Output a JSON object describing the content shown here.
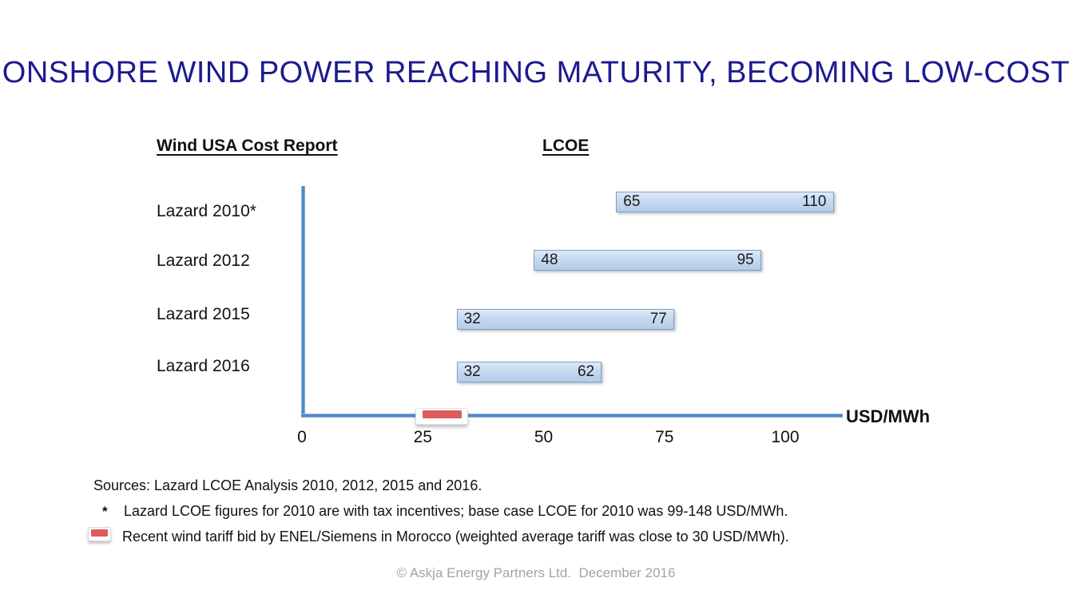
{
  "slide": {
    "title": "ONSHORE WIND POWER REACHING MATURITY, BECOMING LOW-COST",
    "left_column_header": "Wind USA Cost Report",
    "right_column_header": "LCOE"
  },
  "colors": {
    "title_navy": "#1b1b8e",
    "bar_fill": "#bfd5ee",
    "bar_border": "#7ba2cf",
    "axis_blue": "#4d86c6",
    "marker_red": "#dd5c5c",
    "copyright_gray": "#a3a3a3"
  },
  "chart_data": {
    "type": "bar",
    "orientation": "horizontal_range_bars",
    "title": "LCOE",
    "categories": [
      "Lazard 2010*",
      "Lazard 2012",
      "Lazard 2015",
      "Lazard 2016"
    ],
    "series": [
      {
        "name": "Lazard LCOE range",
        "ranges": [
          [
            65,
            110
          ],
          [
            48,
            95
          ],
          [
            32,
            77
          ],
          [
            32,
            62
          ]
        ]
      }
    ],
    "x_ticks": [
      "0",
      "25",
      "50",
      "75",
      "100"
    ],
    "x_tick_values": [
      0,
      25,
      50,
      75,
      100
    ],
    "xlim": [
      0,
      112
    ],
    "xlabel": "USD/MWh",
    "grid": false,
    "legend_position": "none",
    "marker": {
      "label": "Recent wind tariff bid by ENEL/Siemens in Morocco",
      "range": [
        25,
        33
      ],
      "note": "weighted average tariff was close to 30 USD/MWh",
      "color": "#dd5c5c"
    }
  },
  "footer": {
    "sources_line": "Sources: Lazard LCOE Analysis 2010, 2012, 2015 and 2016.",
    "footnote_star_symbol": "*",
    "footnote_star_text": "Lazard LCOE figures for 2010 are with tax incentives; base case LCOE for 2010 was 99-148 USD/MWh.",
    "footnote_marker_text": "Recent wind tariff bid by ENEL/Siemens in Morocco (weighted average tariff was close to 30 USD/MWh).",
    "copyright": "© Askja Energy Partners Ltd.  December 2016"
  }
}
